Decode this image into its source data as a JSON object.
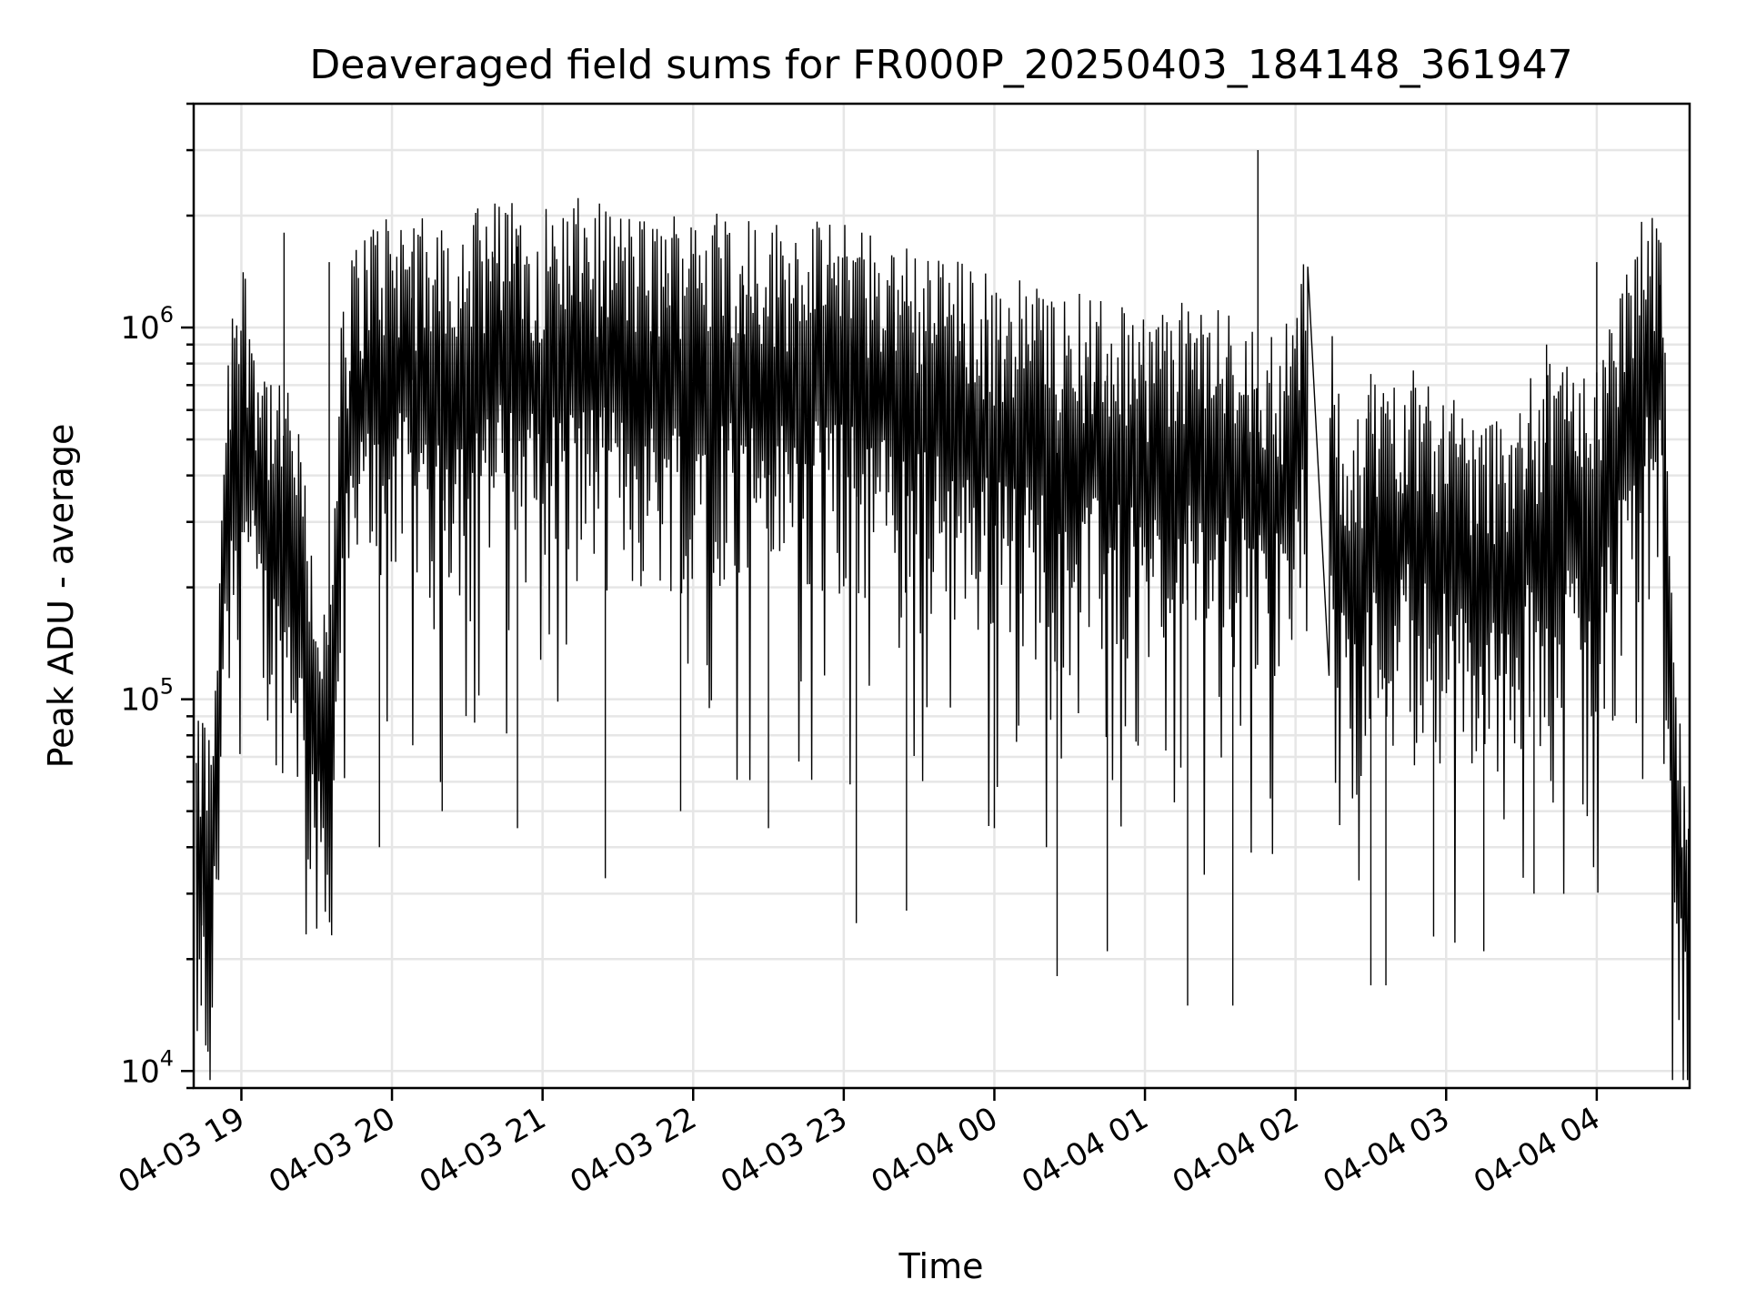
{
  "chart_data": {
    "type": "line",
    "title": "Deaveraged field sums for FR000P_20250403_184148_361947",
    "xlabel": "Time",
    "ylabel": "Peak ADU - average",
    "yscale": "log",
    "ylim": [
      9000,
      4000000
    ],
    "xlim": [
      "2025-04-03 18:41",
      "2025-04-04 04:37"
    ],
    "grid": true,
    "line_color": "#000000",
    "x_ticks": [
      {
        "t": "2025-04-03 19:00",
        "label": "04-03 19"
      },
      {
        "t": "2025-04-03 20:00",
        "label": "04-03 20"
      },
      {
        "t": "2025-04-03 21:00",
        "label": "04-03 21"
      },
      {
        "t": "2025-04-03 22:00",
        "label": "04-03 22"
      },
      {
        "t": "2025-04-03 23:00",
        "label": "04-03 23"
      },
      {
        "t": "2025-04-04 00:00",
        "label": "04-04 00"
      },
      {
        "t": "2025-04-04 01:00",
        "label": "04-04 01"
      },
      {
        "t": "2025-04-04 02:00",
        "label": "04-04 02"
      },
      {
        "t": "2025-04-04 03:00",
        "label": "04-04 03"
      },
      {
        "t": "2025-04-04 04:00",
        "label": "04-04 04"
      }
    ],
    "y_ticks": [
      {
        "value": 10000,
        "base": "10",
        "exp": "4"
      },
      {
        "value": 100000,
        "base": "10",
        "exp": "5"
      },
      {
        "value": 1000000,
        "base": "10",
        "exp": "6"
      }
    ],
    "series": [
      {
        "points": [
          [
            "2025-04-03 18:42",
            30000
          ],
          [
            "2025-04-03 18:45",
            35000
          ],
          [
            "2025-04-03 18:48",
            28000
          ],
          [
            "2025-04-03 18:51",
            100000
          ],
          [
            "2025-04-03 18:54",
            300000
          ],
          [
            "2025-04-03 18:57",
            500000
          ],
          [
            "2025-04-03 19:00",
            600000
          ],
          [
            "2025-04-03 19:05",
            400000
          ],
          [
            "2025-04-03 19:10",
            300000
          ],
          [
            "2025-04-03 19:15",
            250000
          ],
          [
            "2025-04-03 19:20",
            250000
          ],
          [
            "2025-04-03 19:25",
            150000
          ],
          [
            "2025-04-03 19:30",
            80000
          ],
          [
            "2025-04-03 19:35",
            60000
          ],
          [
            "2025-04-03 19:40",
            400000
          ],
          [
            "2025-04-03 19:45",
            600000
          ],
          [
            "2025-04-03 19:50",
            700000
          ],
          [
            "2025-04-03 20:00",
            750000
          ],
          [
            "2025-04-03 20:15",
            700000
          ],
          [
            "2025-04-03 20:30",
            750000
          ],
          [
            "2025-04-03 20:45",
            800000
          ],
          [
            "2025-04-03 21:00",
            750000
          ],
          [
            "2025-04-03 21:15",
            800000
          ],
          [
            "2025-04-03 21:30",
            750000
          ],
          [
            "2025-04-03 21:45",
            700000
          ],
          [
            "2025-04-03 22:00",
            800000
          ],
          [
            "2025-04-03 22:15",
            750000
          ],
          [
            "2025-04-03 22:30",
            700000
          ],
          [
            "2025-04-03 22:45",
            700000
          ],
          [
            "2025-04-03 23:00",
            700000
          ],
          [
            "2025-04-03 23:15",
            650000
          ],
          [
            "2025-04-03 23:30",
            600000
          ],
          [
            "2025-04-03 23:45",
            550000
          ],
          [
            "2025-04-04 00:00",
            500000
          ],
          [
            "2025-04-04 00:15",
            480000
          ],
          [
            "2025-04-04 00:30",
            450000
          ],
          [
            "2025-04-04 00:45",
            430000
          ],
          [
            "2025-04-04 01:00",
            400000
          ],
          [
            "2025-04-04 01:15",
            420000
          ],
          [
            "2025-04-04 01:30",
            400000
          ],
          [
            "2025-04-04 01:45",
            380000
          ],
          [
            "2025-04-04 01:55",
            350000
          ],
          [
            "2025-04-04 02:05",
            600000
          ],
          [
            "2025-04-04 02:13",
            420000
          ],
          [
            "2025-04-04 02:20",
            200000
          ],
          [
            "2025-04-04 02:30",
            250000
          ],
          [
            "2025-04-04 02:45",
            300000
          ],
          [
            "2025-04-04 03:00",
            250000
          ],
          [
            "2025-04-04 03:15",
            200000
          ],
          [
            "2025-04-04 03:30",
            250000
          ],
          [
            "2025-04-04 03:45",
            300000
          ],
          [
            "2025-04-04 04:00",
            300000
          ],
          [
            "2025-04-04 04:10",
            500000
          ],
          [
            "2025-04-04 04:20",
            750000
          ],
          [
            "2025-04-04 04:26",
            700000
          ],
          [
            "2025-04-04 04:29",
            100000
          ],
          [
            "2025-04-04 04:32",
            40000
          ],
          [
            "2025-04-04 04:35",
            30000
          ],
          [
            "2025-04-04 04:37",
            15000
          ]
        ],
        "spikes_high": [
          [
            "2025-04-03 19:17",
            1800000
          ],
          [
            "2025-04-03 19:35",
            1500000
          ],
          [
            "2025-04-03 20:08",
            1600000
          ],
          [
            "2025-04-03 20:40",
            1600000
          ],
          [
            "2025-04-03 20:50",
            1650000
          ],
          [
            "2025-04-03 21:50",
            1400000
          ],
          [
            "2025-04-03 22:20",
            1300000
          ],
          [
            "2025-04-03 22:40",
            1200000
          ],
          [
            "2025-04-03 23:20",
            1100000
          ],
          [
            "2025-04-04 00:05",
            950000
          ],
          [
            "2025-04-04 00:45",
            850000
          ],
          [
            "2025-04-04 01:45",
            3000000
          ],
          [
            "2025-04-04 02:30",
            750000
          ],
          [
            "2025-04-04 03:40",
            900000
          ],
          [
            "2025-04-04 04:00",
            1500000
          ],
          [
            "2025-04-04 04:25",
            1300000
          ]
        ],
        "spikes_low": [
          [
            "2025-04-03 18:44",
            15000
          ],
          [
            "2025-04-03 19:35",
            40000
          ],
          [
            "2025-04-03 19:55",
            40000
          ],
          [
            "2025-04-03 20:20",
            50000
          ],
          [
            "2025-04-03 20:50",
            45000
          ],
          [
            "2025-04-03 21:25",
            33000
          ],
          [
            "2025-04-03 21:55",
            50000
          ],
          [
            "2025-04-03 22:30",
            45000
          ],
          [
            "2025-04-03 23:05",
            25000
          ],
          [
            "2025-04-03 23:25",
            27000
          ],
          [
            "2025-04-04 00:00",
            45000
          ],
          [
            "2025-04-04 00:25",
            18000
          ],
          [
            "2025-04-04 00:45",
            21000
          ],
          [
            "2025-04-04 01:17",
            15000
          ],
          [
            "2025-04-04 01:35",
            15000
          ],
          [
            "2025-04-04 02:30",
            17000
          ],
          [
            "2025-04-04 02:36",
            17000
          ],
          [
            "2025-04-04 02:55",
            23000
          ],
          [
            "2025-04-04 03:15",
            21000
          ],
          [
            "2025-04-04 03:35",
            30000
          ],
          [
            "2025-04-04 04:36",
            17000
          ]
        ]
      }
    ]
  }
}
